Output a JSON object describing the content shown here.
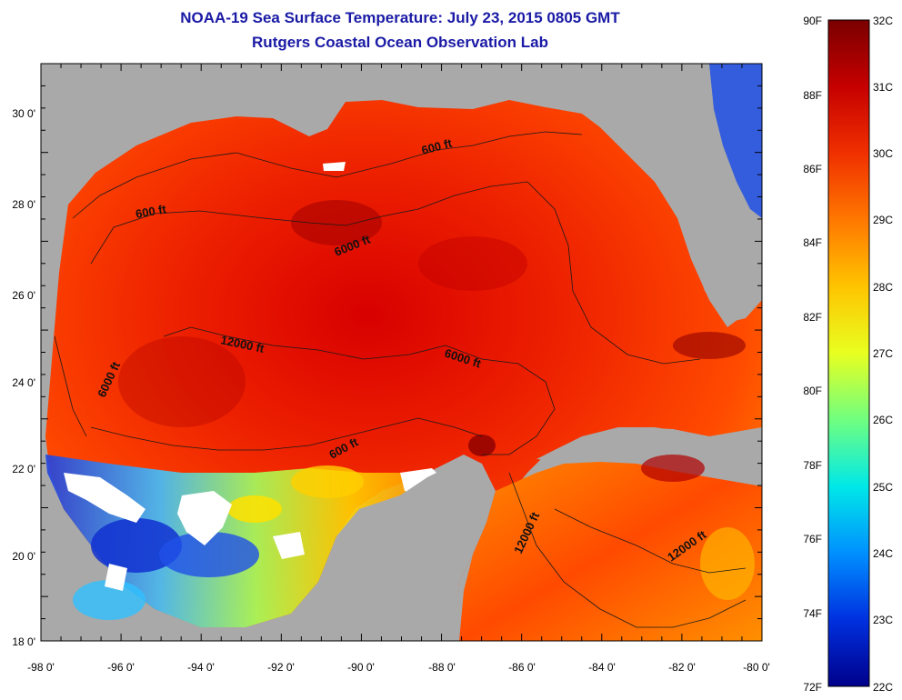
{
  "title": "NOAA-19 Sea Surface Temperature:  July 23, 2015 0805 GMT",
  "subtitle": "Rutgers Coastal Ocean Observation Lab",
  "map": {
    "lon_ticks": [
      "-98 0'",
      "-96 0'",
      "-94 0'",
      "-92 0'",
      "-90 0'",
      "-88 0'",
      "-86 0'",
      "-84 0'",
      "-82 0'",
      "-80 0'"
    ],
    "lat_ticks": [
      "30 0'",
      "28 0'",
      "26 0'",
      "24 0'",
      "22 0'",
      "20 0'",
      "18 0'"
    ],
    "contour_labels": [
      "600 ft",
      "600 ft",
      "6000 ft",
      "12000 ft",
      "6000 ft",
      "6000 ft",
      "600 ft",
      "12000 ft",
      "12000 ft"
    ],
    "land_color": "#a9a9a9",
    "cloud_color": "#ffffff"
  },
  "colorbar": {
    "fahrenheit_labels": [
      "90F",
      "88F",
      "86F",
      "84F",
      "82F",
      "80F",
      "78F",
      "76F",
      "74F",
      "72F"
    ],
    "celsius_labels": [
      "32C",
      "31C",
      "30C",
      "29C",
      "28C",
      "27C",
      "26C",
      "25C",
      "24C",
      "23C",
      "22C"
    ],
    "colors": [
      "#7a0000",
      "#c60000",
      "#f03000",
      "#ff7800",
      "#ffc400",
      "#e8ff20",
      "#70ff80",
      "#00e8e8",
      "#0090ff",
      "#0030e0",
      "#00008a"
    ]
  }
}
